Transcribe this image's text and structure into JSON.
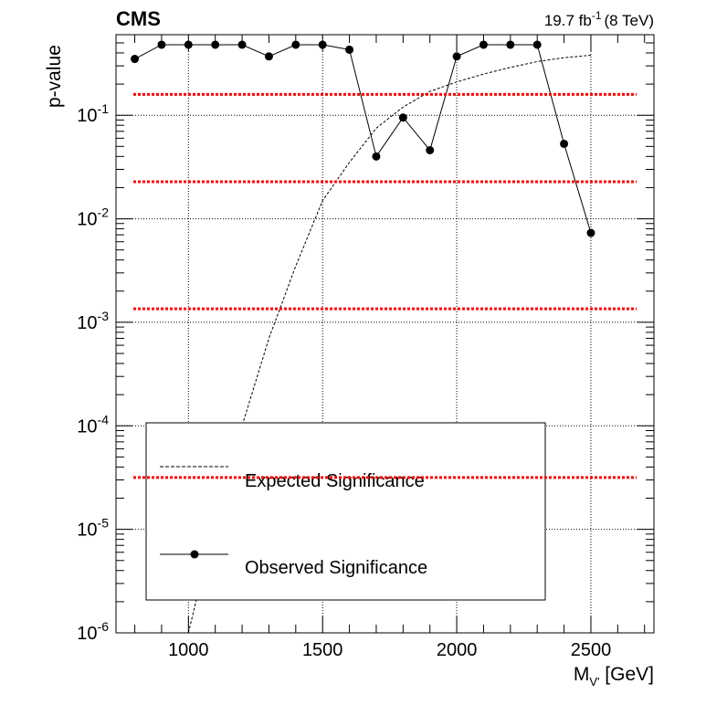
{
  "header": {
    "experiment": "CMS",
    "lumi_value": "19.7 fb",
    "lumi_exp": "-1",
    "lumi_energy": "(8 TeV)"
  },
  "chart_data": {
    "type": "line",
    "ylabel": "p-value",
    "xlabel_main": "M",
    "xlabel_sub": "V'",
    "xlabel_unit": " [GeV]",
    "xlim": [
      730,
      2735
    ],
    "ylim": [
      1e-06,
      0.6
    ],
    "y_scale": "log",
    "grid": true,
    "x_ticks": [
      1000,
      1500,
      2000,
      2500
    ],
    "y_ticks": [
      {
        "value": 1e-06,
        "base": "10",
        "exp": "-6"
      },
      {
        "value": 1e-05,
        "base": "10",
        "exp": "-5"
      },
      {
        "value": 0.0001,
        "base": "10",
        "exp": "-4"
      },
      {
        "value": 0.001,
        "base": "10",
        "exp": "-3"
      },
      {
        "value": 0.01,
        "base": "10",
        "exp": "-2"
      },
      {
        "value": 0.1,
        "base": "10",
        "exp": "-1"
      }
    ],
    "legend_position": "bottom-left",
    "series": [
      {
        "name": "Observed Significance",
        "style": "solid-marker",
        "color": "#000000",
        "x": [
          800,
          900,
          1000,
          1100,
          1200,
          1300,
          1400,
          1500,
          1600,
          1700,
          1800,
          1900,
          2000,
          2100,
          2200,
          2300,
          2400,
          2500
        ],
        "y": [
          0.35,
          0.48,
          0.48,
          0.48,
          0.48,
          0.37,
          0.48,
          0.48,
          0.43,
          0.04,
          0.095,
          0.046,
          0.37,
          0.48,
          0.48,
          0.48,
          0.053,
          0.0073
        ]
      },
      {
        "name": "Expected Significance",
        "style": "dashed",
        "color": "#000000",
        "x": [
          1000,
          1100,
          1200,
          1300,
          1400,
          1500,
          1600,
          1700,
          1800,
          1900,
          2000,
          2100,
          2200,
          2300,
          2400,
          2500
        ],
        "y": [
          1e-06,
          1.2e-05,
          0.0001,
          0.0007,
          0.0035,
          0.015,
          0.035,
          0.075,
          0.12,
          0.17,
          0.21,
          0.25,
          0.29,
          0.33,
          0.36,
          0.38
        ]
      }
    ],
    "reference_lines": {
      "color": "#ff0000",
      "style": "dotted",
      "values": [
        0.159,
        0.0228,
        0.00135,
        3.17e-05
      ]
    }
  }
}
